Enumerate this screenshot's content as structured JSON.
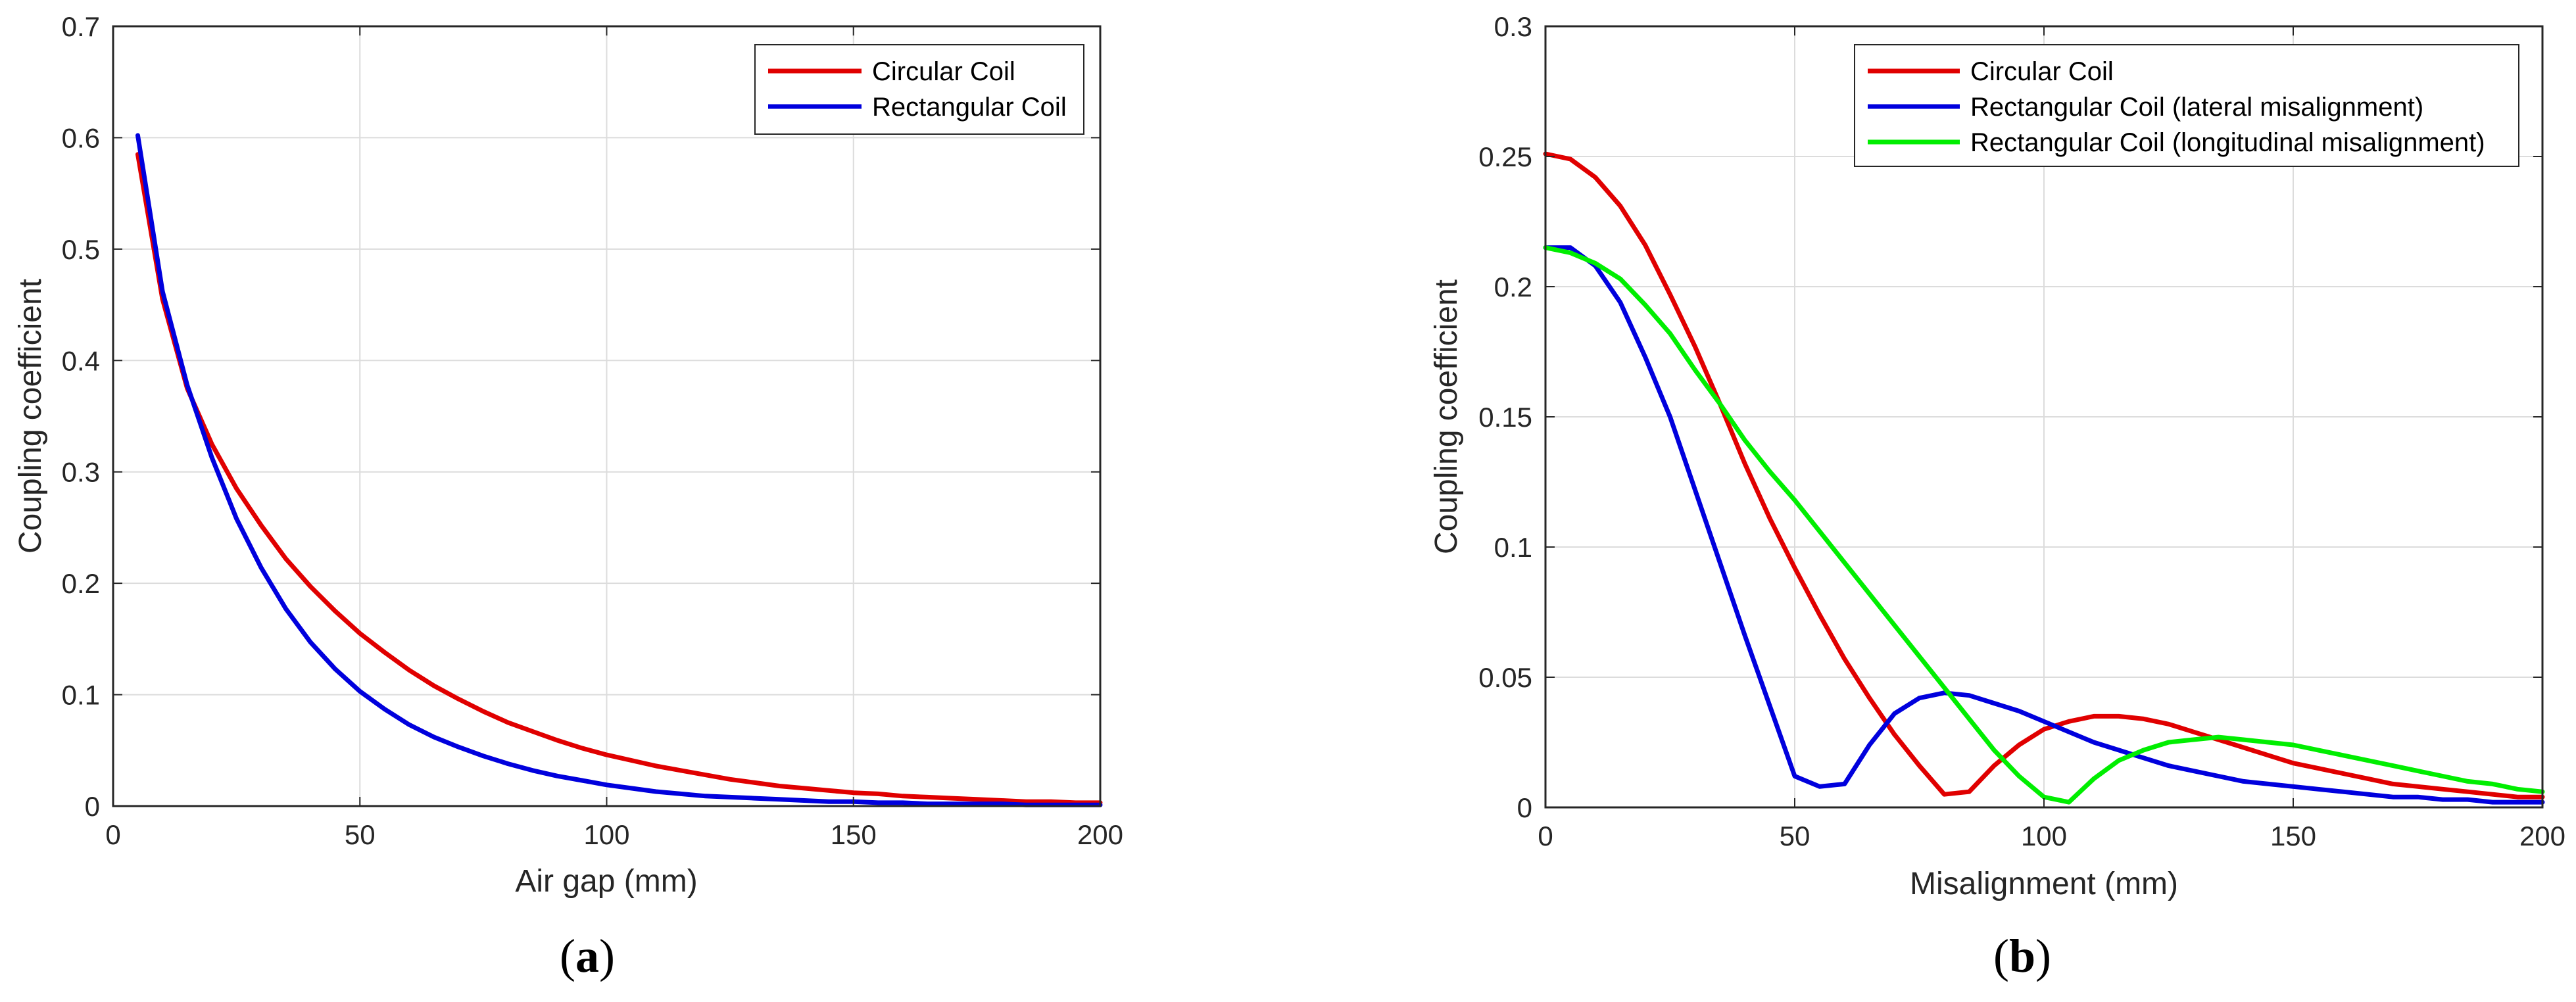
{
  "chart_data": [
    {
      "type": "line",
      "panel_label": {
        "open": "(",
        "letter": "a",
        "close": ")"
      },
      "title": "",
      "xlabel": "Air gap (mm)",
      "ylabel": "Coupling coefficient",
      "xlim": [
        0,
        200
      ],
      "ylim": [
        0,
        0.7
      ],
      "xticks": [
        "0",
        "50",
        "100",
        "150",
        "200"
      ],
      "yticks": [
        "0",
        "0.1",
        "0.2",
        "0.3",
        "0.4",
        "0.5",
        "0.6",
        "0.7"
      ],
      "grid": true,
      "legend": "top-right",
      "series": [
        {
          "name": "Circular Coil",
          "color": "#e00000",
          "x": [
            5,
            10,
            15,
            20,
            25,
            30,
            35,
            40,
            45,
            50,
            55,
            60,
            65,
            70,
            75,
            80,
            85,
            90,
            95,
            100,
            105,
            110,
            115,
            120,
            125,
            130,
            135,
            140,
            145,
            150,
            155,
            160,
            165,
            170,
            175,
            180,
            185,
            190,
            195,
            200
          ],
          "y": [
            0.585,
            0.455,
            0.375,
            0.325,
            0.285,
            0.252,
            0.222,
            0.197,
            0.175,
            0.155,
            0.138,
            0.122,
            0.108,
            0.096,
            0.085,
            0.075,
            0.067,
            0.059,
            0.052,
            0.046,
            0.041,
            0.036,
            0.032,
            0.028,
            0.024,
            0.021,
            0.018,
            0.016,
            0.014,
            0.012,
            0.011,
            0.009,
            0.008,
            0.007,
            0.006,
            0.005,
            0.004,
            0.004,
            0.003,
            0.003
          ]
        },
        {
          "name": "Rectangular Coil",
          "color": "#0000dd",
          "x": [
            5,
            10,
            15,
            20,
            25,
            30,
            35,
            40,
            45,
            50,
            55,
            60,
            65,
            70,
            75,
            80,
            85,
            90,
            95,
            100,
            105,
            110,
            115,
            120,
            125,
            130,
            135,
            140,
            145,
            150,
            155,
            160,
            165,
            170,
            175,
            180,
            185,
            190,
            195,
            200
          ],
          "y": [
            0.602,
            0.462,
            0.378,
            0.313,
            0.258,
            0.214,
            0.177,
            0.147,
            0.123,
            0.103,
            0.087,
            0.073,
            0.062,
            0.053,
            0.045,
            0.038,
            0.032,
            0.027,
            0.023,
            0.019,
            0.016,
            0.013,
            0.011,
            0.009,
            0.008,
            0.007,
            0.006,
            0.005,
            0.004,
            0.004,
            0.003,
            0.003,
            0.002,
            0.002,
            0.002,
            0.002,
            0.001,
            0.001,
            0.001,
            0.001
          ]
        }
      ]
    },
    {
      "type": "line",
      "panel_label": {
        "open": "(",
        "letter": "b",
        "close": ")"
      },
      "title": "",
      "xlabel": "Misalignment (mm)",
      "ylabel": "Coupling coefficient",
      "xlim": [
        0,
        200
      ],
      "ylim": [
        0,
        0.3
      ],
      "xticks": [
        "0",
        "50",
        "100",
        "150",
        "200"
      ],
      "yticks": [
        "0",
        "0.05",
        "0.1",
        "0.15",
        "0.2",
        "0.25",
        "0.3"
      ],
      "grid": true,
      "legend": "top-right",
      "series": [
        {
          "name": "Circular Coil",
          "color": "#e00000",
          "x": [
            0,
            5,
            10,
            15,
            20,
            25,
            30,
            35,
            40,
            45,
            50,
            55,
            60,
            65,
            70,
            75,
            80,
            85,
            90,
            95,
            100,
            105,
            110,
            115,
            120,
            125,
            130,
            135,
            140,
            145,
            150,
            155,
            160,
            165,
            170,
            175,
            180,
            185,
            190,
            195,
            200
          ],
          "y": [
            0.251,
            0.249,
            0.242,
            0.231,
            0.216,
            0.197,
            0.177,
            0.155,
            0.132,
            0.111,
            0.092,
            0.074,
            0.057,
            0.042,
            0.028,
            0.016,
            0.005,
            0.006,
            0.016,
            0.024,
            0.03,
            0.033,
            0.035,
            0.035,
            0.034,
            0.032,
            0.029,
            0.026,
            0.023,
            0.02,
            0.017,
            0.015,
            0.013,
            0.011,
            0.009,
            0.008,
            0.007,
            0.006,
            0.005,
            0.004,
            0.004
          ]
        },
        {
          "name": "Rectangular Coil (lateral misalignment)",
          "color": "#0000dd",
          "x": [
            0,
            5,
            10,
            15,
            20,
            25,
            30,
            35,
            40,
            45,
            50,
            55,
            60,
            65,
            70,
            75,
            80,
            85,
            90,
            95,
            100,
            105,
            110,
            115,
            120,
            125,
            130,
            135,
            140,
            145,
            150,
            155,
            160,
            165,
            170,
            175,
            180,
            185,
            190,
            195,
            200
          ],
          "y": [
            0.215,
            0.215,
            0.208,
            0.194,
            0.173,
            0.15,
            0.122,
            0.094,
            0.066,
            0.039,
            0.012,
            0.008,
            0.009,
            0.024,
            0.036,
            0.042,
            0.044,
            0.043,
            0.04,
            0.037,
            0.033,
            0.029,
            0.025,
            0.022,
            0.019,
            0.016,
            0.014,
            0.012,
            0.01,
            0.009,
            0.008,
            0.007,
            0.006,
            0.005,
            0.004,
            0.004,
            0.003,
            0.003,
            0.002,
            0.002,
            0.002
          ]
        },
        {
          "name": "Rectangular Coil (longitudinal misalignment)",
          "color": "#00ee00",
          "x": [
            0,
            5,
            10,
            15,
            20,
            25,
            30,
            35,
            40,
            45,
            50,
            55,
            60,
            65,
            70,
            75,
            80,
            85,
            90,
            95,
            100,
            105,
            110,
            115,
            120,
            125,
            130,
            135,
            140,
            145,
            150,
            155,
            160,
            165,
            170,
            175,
            180,
            185,
            190,
            195,
            200
          ],
          "y": [
            0.215,
            0.213,
            0.209,
            0.203,
            0.193,
            0.182,
            0.168,
            0.155,
            0.141,
            0.129,
            0.118,
            0.106,
            0.094,
            0.082,
            0.07,
            0.058,
            0.046,
            0.034,
            0.022,
            0.012,
            0.004,
            0.002,
            0.011,
            0.018,
            0.022,
            0.025,
            0.026,
            0.027,
            0.026,
            0.025,
            0.024,
            0.022,
            0.02,
            0.018,
            0.016,
            0.014,
            0.012,
            0.01,
            0.009,
            0.007,
            0.006
          ]
        }
      ]
    }
  ]
}
